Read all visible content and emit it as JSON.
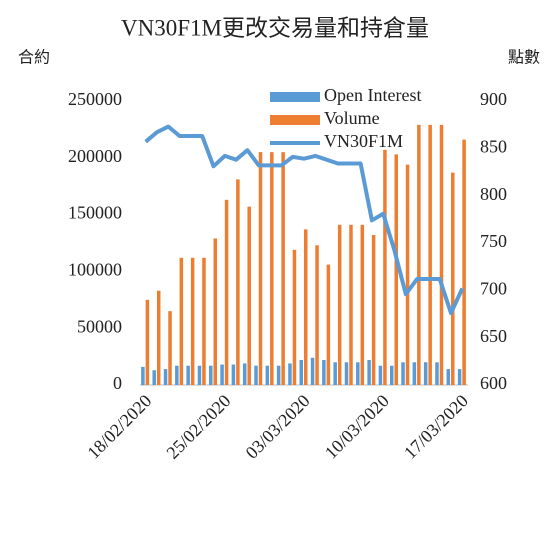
{
  "chart_data": {
    "type": "bar-line",
    "title": "VN30F1M更改交易量和持倉量",
    "y_label": "合約",
    "y2_label": "點數",
    "categories": [
      "18/02/2020",
      null,
      null,
      null,
      null,
      null,
      null,
      "25/02/2020",
      null,
      null,
      null,
      null,
      null,
      null,
      "03/03/2020",
      null,
      null,
      null,
      null,
      null,
      null,
      "10/03/2020",
      null,
      null,
      null,
      null,
      null,
      null,
      "17/03/2020"
    ],
    "series": [
      {
        "name": "Open Interest",
        "type": "bar",
        "color": "#5b9bd5",
        "values": [
          16000,
          13000,
          14000,
          17000,
          17000,
          17000,
          17000,
          18000,
          18000,
          19000,
          17000,
          17000,
          17000,
          19000,
          22000,
          24000,
          22000,
          20000,
          20000,
          20000,
          22000,
          17000,
          17000,
          20000,
          20000,
          20000,
          20000,
          14000,
          14000
        ]
      },
      {
        "name": "Volume",
        "type": "bar",
        "color": "#ed7d31",
        "values": [
          75000,
          83000,
          65000,
          112000,
          112000,
          112000,
          129000,
          163000,
          181000,
          157000,
          205000,
          205000,
          205000,
          119000,
          137000,
          123000,
          106000,
          141000,
          141000,
          141000,
          132000,
          207000,
          203000,
          194000,
          229000,
          229000,
          229000,
          187000,
          216000
        ]
      },
      {
        "name": "VN30F1M",
        "type": "line",
        "axis": "y2",
        "color": "#5b9bd5",
        "values": [
          857,
          867,
          873,
          863,
          863,
          863,
          831,
          842,
          838,
          848,
          832,
          832,
          832,
          841,
          839,
          842,
          838,
          834,
          834,
          834,
          774,
          781,
          742,
          696,
          712,
          712,
          712,
          676,
          702
        ]
      }
    ],
    "ylim": [
      0,
      250000
    ],
    "yticks": [
      0,
      50000,
      100000,
      150000,
      200000,
      250000
    ],
    "y2lim": [
      600,
      900
    ],
    "y2ticks": [
      600,
      650,
      700,
      750,
      800,
      850,
      900
    ],
    "legend": "top-right"
  }
}
